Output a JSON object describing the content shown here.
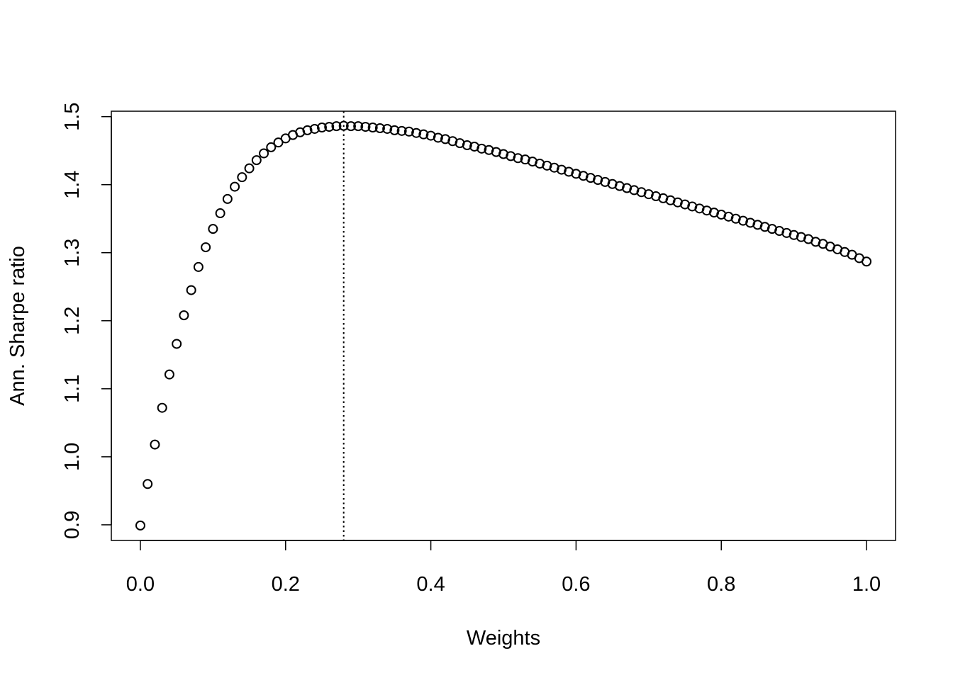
{
  "chart_data": {
    "type": "scatter",
    "title": "",
    "xlabel": "Weights",
    "ylabel": "Ann. Sharpe ratio",
    "xlim": [
      -0.04,
      1.04
    ],
    "ylim": [
      0.877,
      1.508
    ],
    "xticks": [
      0.0,
      0.2,
      0.4,
      0.6,
      0.8,
      1.0
    ],
    "xtick_labels": [
      "0.0",
      "0.2",
      "0.4",
      "0.6",
      "0.8",
      "1.0"
    ],
    "yticks": [
      0.9,
      1.0,
      1.1,
      1.2,
      1.3,
      1.4,
      1.5
    ],
    "ytick_labels": [
      "0.9",
      "1.0",
      "1.1",
      "1.2",
      "1.3",
      "1.4",
      "1.5"
    ],
    "grid": false,
    "legend": "none",
    "point_style": "open-circle",
    "vertical_reference_line": {
      "x": 0.28,
      "style": "dotted"
    },
    "x": [
      0.0,
      0.01,
      0.02,
      0.03,
      0.04,
      0.05,
      0.06,
      0.07,
      0.08,
      0.09,
      0.1,
      0.11,
      0.12,
      0.13,
      0.14,
      0.15,
      0.16,
      0.17,
      0.18,
      0.19,
      0.2,
      0.21,
      0.22,
      0.23,
      0.24,
      0.25,
      0.26,
      0.27,
      0.28,
      0.29,
      0.3,
      0.31,
      0.32,
      0.33,
      0.34,
      0.35,
      0.36,
      0.37,
      0.38,
      0.39,
      0.4,
      0.41,
      0.42,
      0.43,
      0.44,
      0.45,
      0.46,
      0.47,
      0.48,
      0.49,
      0.5,
      0.51,
      0.52,
      0.53,
      0.54,
      0.55,
      0.56,
      0.57,
      0.58,
      0.59,
      0.6,
      0.61,
      0.62,
      0.63,
      0.64,
      0.65,
      0.66,
      0.67,
      0.68,
      0.69,
      0.7,
      0.71,
      0.72,
      0.73,
      0.74,
      0.75,
      0.76,
      0.77,
      0.78,
      0.79,
      0.8,
      0.81,
      0.82,
      0.83,
      0.84,
      0.85,
      0.86,
      0.87,
      0.88,
      0.89,
      0.9,
      0.91,
      0.92,
      0.93,
      0.94,
      0.95,
      0.96,
      0.97,
      0.98,
      0.99,
      1.0
    ],
    "y": [
      0.899,
      0.96,
      1.018,
      1.072,
      1.121,
      1.166,
      1.208,
      1.245,
      1.279,
      1.308,
      1.335,
      1.358,
      1.379,
      1.397,
      1.411,
      1.424,
      1.436,
      1.446,
      1.455,
      1.462,
      1.468,
      1.473,
      1.477,
      1.48,
      1.482,
      1.484,
      1.485,
      1.486,
      1.4865,
      1.486,
      1.486,
      1.485,
      1.484,
      1.483,
      1.482,
      1.48,
      1.479,
      1.478,
      1.476,
      1.474,
      1.472,
      1.469,
      1.467,
      1.464,
      1.461,
      1.458,
      1.456,
      1.453,
      1.451,
      1.448,
      1.445,
      1.442,
      1.439,
      1.437,
      1.434,
      1.431,
      1.428,
      1.425,
      1.422,
      1.419,
      1.416,
      1.413,
      1.41,
      1.407,
      1.404,
      1.401,
      1.398,
      1.395,
      1.392,
      1.389,
      1.386,
      1.383,
      1.38,
      1.377,
      1.374,
      1.371,
      1.368,
      1.365,
      1.362,
      1.359,
      1.356,
      1.353,
      1.35,
      1.347,
      1.344,
      1.341,
      1.338,
      1.335,
      1.332,
      1.329,
      1.326,
      1.323,
      1.32,
      1.316,
      1.313,
      1.309,
      1.305,
      1.301,
      1.297,
      1.292,
      1.287
    ]
  }
}
